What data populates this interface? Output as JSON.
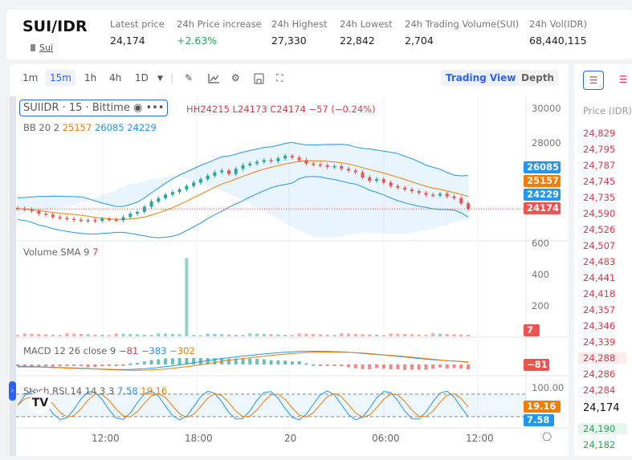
{
  "header": {
    "pair": "SUI/IDR",
    "coin": "Sui",
    "stats": [
      {
        "label": "Latest price",
        "value": "24,174"
      },
      {
        "label": "24h Price increase",
        "value": "+2.63%",
        "color": "#26a65b"
      },
      {
        "label": "24h Highest",
        "value": "27,330"
      },
      {
        "label": "24h Lowest",
        "value": "22,842"
      },
      {
        "label": "24h Trading Volume(SUI)",
        "value": "2,704"
      },
      {
        "label": "24h Vol(IDR)",
        "value": "68,440,115"
      }
    ]
  },
  "toolbar": {
    "intervals": [
      "1m",
      "15m",
      "1h",
      "4h",
      "1D"
    ],
    "active": "15m",
    "tabs": [
      "Trading View",
      "Depth"
    ],
    "icons": [
      "chevron-down-icon",
      "draw-icon",
      "indicator-icon",
      "gear-icon",
      "save-icon",
      "fullscreen-icon"
    ]
  },
  "chart": {
    "symbol": "SUIIDR · 15 · Bittime",
    "ohlc": {
      "h": "H24215",
      "l": "L24173",
      "c": "C24174",
      "chg": "−57 (−0.24%)"
    },
    "bb": {
      "label": "BB 20 2",
      "mid": "25157",
      "upper": "26085",
      "lower": "24229"
    },
    "price_axis": [
      "30000",
      "28000"
    ],
    "last_price": "24174",
    "closes": [
      24190,
      24150,
      24050,
      23900,
      23850,
      23700,
      23650,
      23600,
      23550,
      23500,
      23520,
      23480,
      23600,
      23550,
      23520,
      23700,
      23900,
      24000,
      24300,
      24600,
      24800,
      25000,
      25150,
      25300,
      25500,
      25700,
      25900,
      26100,
      26300,
      26400,
      26200,
      26500,
      26700,
      26800,
      26900,
      27000,
      26950,
      27100,
      27250,
      27150,
      27000,
      26800,
      26750,
      26700,
      26600,
      26650,
      26500,
      26400,
      26300,
      26000,
      25800,
      25900,
      25700,
      25500,
      25400,
      25300,
      25200,
      25100,
      25000,
      24950,
      25050,
      24900,
      24800,
      24500,
      24174
    ],
    "volume": {
      "label": "Volume SMA 9",
      "value": "7",
      "axis": [
        "600",
        "400",
        "200"
      ],
      "spike": 500
    },
    "macd": {
      "label": "MACD 12 26 close 9",
      "values": [
        "−81",
        "−383",
        "−302"
      ],
      "tag": "−81"
    },
    "stoch": {
      "label": "Stoch RSI 14 14 3 3",
      "k": "7.58",
      "d": "19.16",
      "axis": "100.00"
    },
    "time_axis": [
      "12:00",
      "18:00",
      "20",
      "06:00",
      "12:00"
    ],
    "colors": {
      "up": "#26a69a",
      "down": "#ef5350",
      "blue": "#2196f3",
      "orange": "#f57c00"
    }
  },
  "orderbook": {
    "header": "Price (IDR)",
    "asks": [
      "24,829",
      "24,795",
      "24,787",
      "24,745",
      "24,735",
      "24,590",
      "24,526",
      "24,507",
      "24,483",
      "24,441",
      "24,418",
      "24,357",
      "24,346",
      "24,339",
      "24,288",
      "24,286",
      "24,284"
    ],
    "last": "24,174",
    "bids": [
      "24,190",
      "24,182"
    ]
  }
}
